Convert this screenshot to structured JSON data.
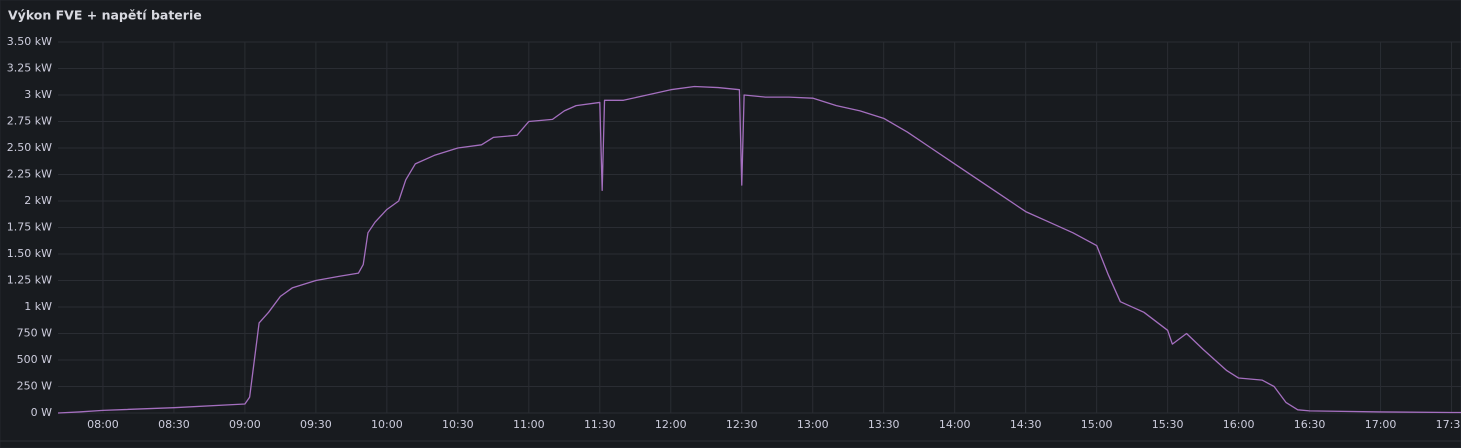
{
  "chart_data": {
    "type": "line",
    "title": "Výkon FVE + napětí baterie",
    "xlim": [
      "07:41",
      "17:34"
    ],
    "xticks": [
      "08:00",
      "08:30",
      "09:00",
      "09:30",
      "10:00",
      "10:30",
      "11:00",
      "11:30",
      "12:00",
      "12:30",
      "13:00",
      "13:30",
      "14:00",
      "14:30",
      "15:00",
      "15:30",
      "16:00",
      "16:30",
      "17:00",
      "17:30"
    ],
    "ylim": [
      0,
      3500
    ],
    "yticks": [
      {
        "value": 0,
        "label": "0 W"
      },
      {
        "value": 250,
        "label": "250 W"
      },
      {
        "value": 500,
        "label": "500 W"
      },
      {
        "value": 750,
        "label": "750 W"
      },
      {
        "value": 1000,
        "label": "1 kW"
      },
      {
        "value": 1250,
        "label": "1.25 kW"
      },
      {
        "value": 1500,
        "label": "1.50 kW"
      },
      {
        "value": 1750,
        "label": "1.75 kW"
      },
      {
        "value": 2000,
        "label": "2 kW"
      },
      {
        "value": 2250,
        "label": "2.25 kW"
      },
      {
        "value": 2500,
        "label": "2.50 kW"
      },
      {
        "value": 2750,
        "label": "2.75 kW"
      },
      {
        "value": 3000,
        "label": "3 kW"
      },
      {
        "value": 3250,
        "label": "3.25 kW"
      },
      {
        "value": 3500,
        "label": "3.50 kW"
      }
    ],
    "grid": true,
    "series": [
      {
        "color": "#a46fbf",
        "x": [
          "07:41",
          "07:50",
          "08:00",
          "08:30",
          "09:00",
          "09:02",
          "09:04",
          "09:06",
          "09:10",
          "09:15",
          "09:20",
          "09:30",
          "09:40",
          "09:48",
          "09:50",
          "09:52",
          "09:55",
          "10:00",
          "10:05",
          "10:08",
          "10:12",
          "10:20",
          "10:30",
          "10:40",
          "10:45",
          "10:55",
          "11:00",
          "11:10",
          "11:15",
          "11:20",
          "11:30",
          "11:31",
          "11:32",
          "11:40",
          "11:50",
          "12:00",
          "12:10",
          "12:20",
          "12:29",
          "12:30",
          "12:31",
          "12:40",
          "12:50",
          "13:00",
          "13:10",
          "13:20",
          "13:30",
          "13:40",
          "13:50",
          "14:00",
          "14:10",
          "14:20",
          "14:30",
          "14:40",
          "14:50",
          "15:00",
          "15:05",
          "15:10",
          "15:20",
          "15:30",
          "15:32",
          "15:38",
          "15:45",
          "15:55",
          "16:00",
          "16:10",
          "16:15",
          "16:20",
          "16:25",
          "16:30",
          "17:00",
          "17:30",
          "17:34"
        ],
        "values": [
          0,
          10,
          25,
          50,
          85,
          150,
          500,
          850,
          950,
          1100,
          1180,
          1250,
          1290,
          1320,
          1400,
          1700,
          1800,
          1920,
          2000,
          2200,
          2350,
          2430,
          2500,
          2530,
          2600,
          2620,
          2750,
          2770,
          2850,
          2900,
          2930,
          2100,
          2950,
          2950,
          3000,
          3050,
          3080,
          3070,
          3050,
          2150,
          3000,
          2980,
          2980,
          2970,
          2900,
          2850,
          2780,
          2650,
          2500,
          2350,
          2200,
          2050,
          1900,
          1800,
          1700,
          1580,
          1300,
          1050,
          950,
          780,
          650,
          750,
          600,
          400,
          330,
          310,
          250,
          100,
          30,
          20,
          10,
          5,
          5
        ]
      }
    ]
  }
}
